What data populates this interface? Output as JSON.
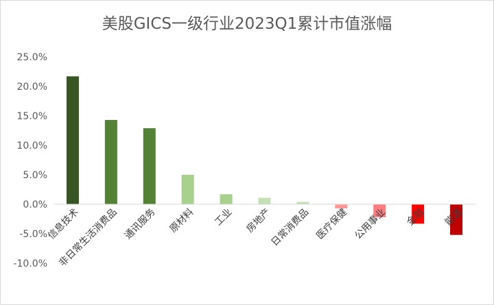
{
  "chart_data": {
    "type": "bar",
    "title": "美股GICS一级行业2023Q1累计市值涨幅",
    "xlabel": "",
    "ylabel": "",
    "ylim": [
      -0.1,
      0.25
    ],
    "y_ticks": [
      "25.0%",
      "20.0%",
      "15.0%",
      "10.0%",
      "5.0%",
      "0.0%",
      "-5.0%",
      "-10.0%"
    ],
    "grid": false,
    "legend": "none",
    "categories": [
      "信息技术",
      "非日常生活消费品",
      "通讯服务",
      "原材料",
      "工业",
      "房地产",
      "日常消费品",
      "医疗保健",
      "公用事业",
      "金融",
      "能源"
    ],
    "values": [
      0.217,
      0.143,
      0.129,
      0.05,
      0.017,
      0.011,
      0.004,
      -0.007,
      -0.022,
      -0.033,
      -0.052
    ],
    "colors": [
      "#375623",
      "#548235",
      "#548235",
      "#a9d18e",
      "#a9d18e",
      "#c5e0b4",
      "#c5e0b4",
      "#ff9999",
      "#ff7c80",
      "#ff0000",
      "#c00000"
    ]
  }
}
